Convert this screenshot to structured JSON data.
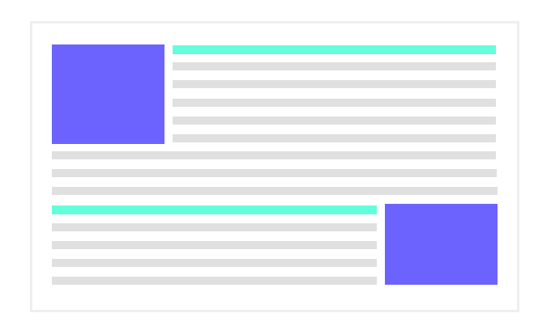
{
  "colors": {
    "image_placeholder": "#6c63ff",
    "heading_bar": "#64ffda",
    "text_line": "#e0e0e0",
    "frame_border": "#efefef",
    "background": "#ffffff"
  },
  "sections": [
    {
      "image": {
        "icon": "image-placeholder-icon",
        "position": "left"
      },
      "heading": {
        "icon": "heading-placeholder-icon"
      },
      "text_line_count": 8
    },
    {
      "image": {
        "icon": "image-placeholder-icon",
        "position": "right"
      },
      "heading": {
        "icon": "heading-placeholder-icon"
      },
      "text_line_count": 4
    }
  ]
}
